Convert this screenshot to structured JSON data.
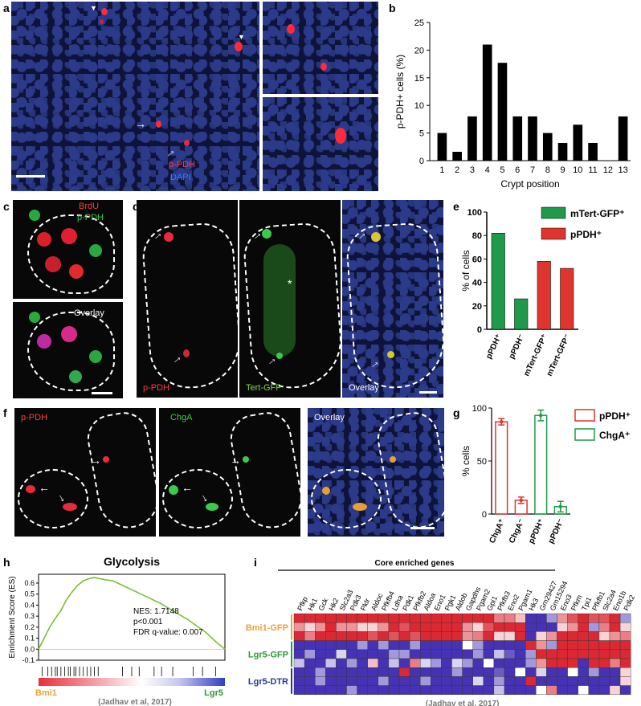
{
  "panels": {
    "a": {
      "label": "a",
      "legend_ppdh": "p-PDH",
      "legend_dapi": "DAPI"
    },
    "b": {
      "label": "b"
    },
    "c": {
      "label": "c",
      "legend_brdu": "BrdU",
      "legend_ppdh": "p-PDH",
      "overlay": "Overlay"
    },
    "d": {
      "label": "d",
      "ppdh": "p-PDH",
      "tert": "Tert-GFP",
      "overlay": "Overlay",
      "asterisk": "*"
    },
    "e": {
      "label": "e"
    },
    "f": {
      "label": "f",
      "ppdh": "p-PDH",
      "chga": "ChgA",
      "overlay": "Overlay"
    },
    "g": {
      "label": "g"
    },
    "h": {
      "label": "h",
      "title": "Glycolysis",
      "nes": "NES: 1.7148",
      "p": "p<0.001",
      "fdr": "FDR q-value: 0.007",
      "left_group": "Bmi1",
      "right_group": "Lgr5",
      "citation": "(Jadhav et al, 2017)"
    },
    "i": {
      "label": "i",
      "header": "Core enriched genes",
      "citation": "(Jadhav et al, 2017)"
    }
  },
  "colors": {
    "green": "#1e9a4a",
    "red": "#e0342f",
    "orange": "#e8a33a",
    "green_text": "#2a9a3a",
    "navy": "#2a3a8a"
  },
  "chart_data": [
    {
      "panel": "b",
      "type": "bar",
      "categories": [
        "1",
        "2",
        "3",
        "4",
        "5",
        "6",
        "7",
        "8",
        "9",
        "10",
        "11",
        "12",
        "13"
      ],
      "values": [
        5,
        1.6,
        8,
        21,
        17.7,
        8,
        8,
        5,
        3.2,
        6.5,
        3.2,
        0,
        8
      ],
      "xlabel": "Crypt position",
      "ylabel": "p-PDH+ cells (%)",
      "ylim": [
        0,
        25
      ],
      "yticks": [
        0,
        5,
        10,
        15,
        20,
        25
      ]
    },
    {
      "panel": "e",
      "type": "bar",
      "categories": [
        "pPDH⁺",
        "pPDH⁻",
        "mTert-GFP⁺",
        "mTert-GFP⁻"
      ],
      "series": [
        {
          "name": "mTert-GFP⁺",
          "values": [
            82,
            26,
            null,
            null
          ]
        },
        {
          "name": "pPDH⁺",
          "values": [
            null,
            null,
            58,
            52
          ]
        }
      ],
      "ylabel": "% of cells",
      "ylim": [
        0,
        100
      ],
      "yticks": [
        0,
        20,
        40,
        60,
        80,
        100
      ]
    },
    {
      "panel": "g",
      "type": "bar",
      "categories": [
        "ChgA⁺",
        "ChgA⁻",
        "pPDH⁺",
        "pPDH⁻"
      ],
      "series": [
        {
          "name": "pPDH⁺",
          "values": [
            87,
            13,
            null,
            null
          ],
          "errors": [
            3,
            3,
            null,
            null
          ]
        },
        {
          "name": "ChgA⁺",
          "values": [
            null,
            null,
            93,
            7
          ],
          "errors": [
            null,
            null,
            5,
            5
          ]
        }
      ],
      "ylabel": "% cells",
      "ylim": [
        0,
        100
      ],
      "yticks": [
        0,
        50,
        100
      ]
    },
    {
      "panel": "h",
      "type": "line",
      "ylabel": "Enrichment Score (ES)",
      "ylim": [
        -0.1,
        0.68
      ],
      "yticks": [
        "-0.1",
        "0.0",
        "0.1",
        "0.2",
        "0.3",
        "0.4",
        "0.5",
        "0.6"
      ],
      "x": [
        0,
        0.03,
        0.06,
        0.09,
        0.12,
        0.15,
        0.18,
        0.21,
        0.24,
        0.27,
        0.3,
        0.33,
        0.36,
        0.4,
        0.45,
        0.5,
        0.55,
        0.6,
        0.65,
        0.7,
        0.75,
        0.8,
        0.85,
        0.9,
        0.95,
        1.0
      ],
      "y": [
        0,
        0.1,
        0.2,
        0.28,
        0.35,
        0.45,
        0.52,
        0.58,
        0.62,
        0.64,
        0.65,
        0.64,
        0.63,
        0.62,
        0.58,
        0.54,
        0.5,
        0.46,
        0.42,
        0.37,
        0.32,
        0.27,
        0.21,
        0.15,
        0.07,
        0.0
      ]
    },
    {
      "panel": "i",
      "type": "heatmap",
      "columns": [
        "Pfkp",
        "Hk1",
        "Gck",
        "Hk2",
        "Slc2a3",
        "Pdk3",
        "Pklr",
        "Aldoc",
        "Pfkfb4",
        "Ldha",
        "Pdk1",
        "Pfkfb2",
        "Aldoa",
        "Eno1",
        "Pgk1",
        "Aldob",
        "Gapdhs",
        "Pgam2",
        "Gpi1",
        "Pfkfb3",
        "Eno2",
        "Pgam1",
        "Hk3",
        "Gm29427",
        "Gm15294",
        "Eno3",
        "Pfkm",
        "Tpi1",
        "Pfkfb1",
        "Slc2a4",
        "Eno1b",
        "Pdk2"
      ],
      "row_groups": [
        {
          "name": "Bmi1-GFP",
          "color": "#e8a33a"
        },
        {
          "name": "Lgr5-GFP",
          "color": "#2a9a3a"
        },
        {
          "name": "Lgr5-DTR",
          "color": "#2a3a8a"
        }
      ],
      "rows": [
        [
          1,
          1,
          1,
          1,
          1,
          1,
          1,
          1,
          1,
          1,
          1,
          1,
          1,
          1,
          1,
          1,
          1,
          1,
          1,
          0.6,
          0.6,
          0.3,
          -1,
          -1,
          -0.5,
          0.5,
          0.8,
          1,
          0.8,
          0.8,
          1,
          -0.5
        ],
        [
          0.5,
          0.2,
          0.5,
          1,
          0.5,
          0.5,
          0.2,
          0.2,
          0.5,
          1,
          0.8,
          1,
          1,
          1,
          1,
          1,
          0.5,
          0.2,
          0.8,
          1,
          1,
          1,
          -1,
          -1,
          -1,
          0.2,
          0.5,
          1,
          -0.5,
          0.6,
          1,
          0.2
        ],
        [
          1,
          0.6,
          1,
          1,
          1,
          1,
          1,
          0.8,
          1,
          0.8,
          1,
          0.8,
          1,
          1,
          1,
          1,
          0.5,
          0.6,
          1,
          0.2,
          0.2,
          1,
          -1,
          0.2,
          0.5,
          1,
          1,
          1,
          1,
          0.2,
          0.5,
          0.6
        ],
        [
          -1,
          -1,
          -1,
          -1,
          -1,
          -1,
          -0.5,
          -1,
          -0.5,
          -1,
          -1,
          -0.5,
          -1,
          -1,
          -1,
          -1,
          0,
          -0.5,
          -1,
          -1,
          -1,
          -1,
          1,
          0.5,
          -0.5,
          1,
          1,
          1,
          1,
          1,
          1,
          1
        ],
        [
          -1,
          -0.5,
          -1,
          -1,
          -0.2,
          -1,
          -1,
          -1,
          -1,
          -0.5,
          -0.5,
          -1,
          -1,
          -1,
          -1,
          -1,
          -1,
          -0.5,
          -1,
          -0.3,
          -0.8,
          -1,
          -0.5,
          1,
          1,
          1,
          1,
          1,
          1,
          1,
          1,
          1
        ],
        [
          -0.3,
          -1,
          -1,
          -0.3,
          -1,
          -0.5,
          -1,
          0.3,
          -1,
          -0.3,
          -1,
          0.6,
          -0.2,
          -0.5,
          -1,
          -0.2,
          -0.5,
          -1,
          0,
          -1,
          -1,
          -1,
          -0.5,
          0.5,
          1,
          1,
          1,
          -1,
          1,
          1,
          0.6,
          1
        ],
        [
          -1,
          -1,
          -0.5,
          -1,
          -1,
          -1,
          -1,
          -1,
          -1,
          -1,
          1,
          -1,
          -1,
          -1,
          -1,
          -0.5,
          -1,
          -1,
          -1,
          -0.8,
          -1,
          0,
          -1,
          -0.2,
          -1,
          -1,
          0,
          -1,
          -0.5,
          -1,
          -1,
          0.2
        ],
        [
          -1,
          -1,
          -0.5,
          -1,
          -1,
          -1,
          -1,
          -1,
          -0.5,
          -1,
          -1,
          -1,
          -0.5,
          -1,
          -1,
          -1,
          -1,
          -0.2,
          -1,
          -0.5,
          -1,
          -1,
          1,
          -1,
          -1,
          -1,
          -1,
          -1,
          -1,
          -1,
          -1,
          0.2
        ],
        [
          -1,
          -1,
          -1,
          -1,
          -1,
          -0.5,
          -1,
          -1,
          -1,
          -1,
          -1,
          -1,
          -1,
          -1,
          -1,
          -1,
          -1,
          -1,
          -1,
          -0.3,
          -1,
          -1,
          -1,
          0,
          0.6,
          -1,
          -1,
          0,
          -1,
          -1,
          0.2,
          -1
        ]
      ]
    }
  ]
}
